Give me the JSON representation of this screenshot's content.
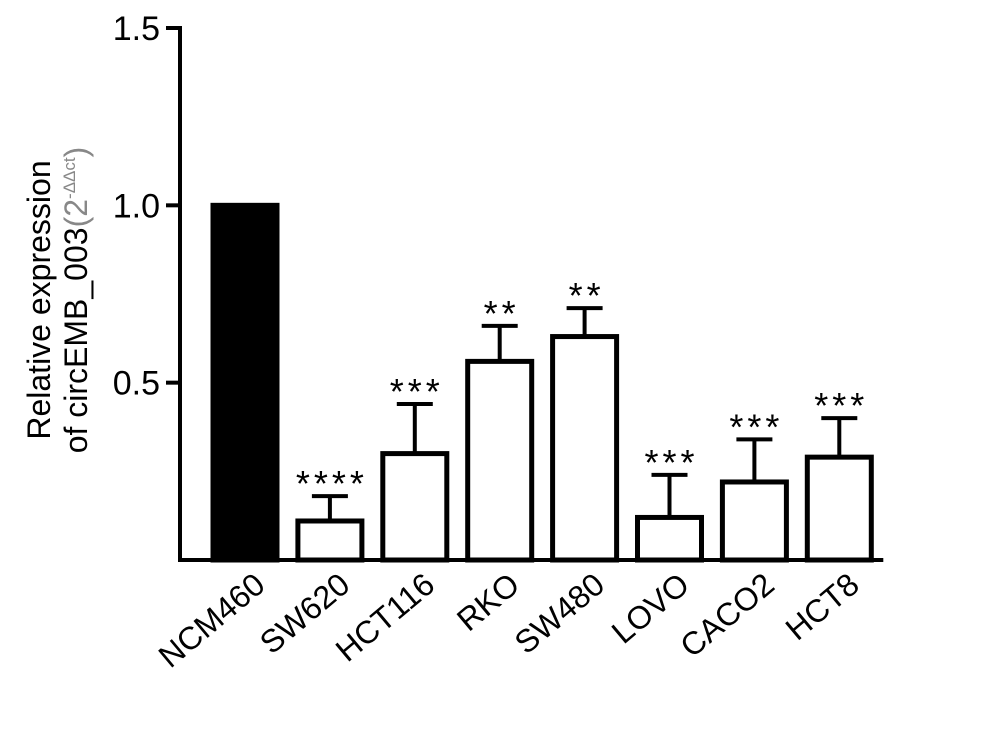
{
  "chart_data": {
    "type": "bar",
    "title": "",
    "xlabel": "",
    "ylabel": "Relative expression",
    "ylabel_line2": "of circEMB_003",
    "ylabel_unit": "(2",
    "ylabel_unit_sup": "-ΔΔct",
    "ylabel_unit_close": ")",
    "ylim": [
      0,
      1.5
    ],
    "yticks": [
      0.5,
      1.0,
      1.5
    ],
    "ytick_labels": [
      "0.5",
      "1.0",
      "1.5"
    ],
    "grid": false,
    "legend": "none",
    "categories": [
      "NCM460",
      "SW620",
      "HCT116",
      "RKO",
      "SW480",
      "LOVO",
      "CACO2",
      "HCT8"
    ],
    "series": [
      {
        "values": [
          1.0,
          0.11,
          0.3,
          0.56,
          0.63,
          0.12,
          0.22,
          0.29
        ],
        "error": [
          0.0,
          0.07,
          0.14,
          0.1,
          0.08,
          0.12,
          0.12,
          0.11
        ]
      }
    ],
    "significance": [
      "",
      "****",
      "***",
      "**",
      "**",
      "***",
      "***",
      "***"
    ],
    "colors": {
      "control_fill": "#000000",
      "bar_fill": "#ffffff",
      "stroke": "#000000"
    }
  }
}
